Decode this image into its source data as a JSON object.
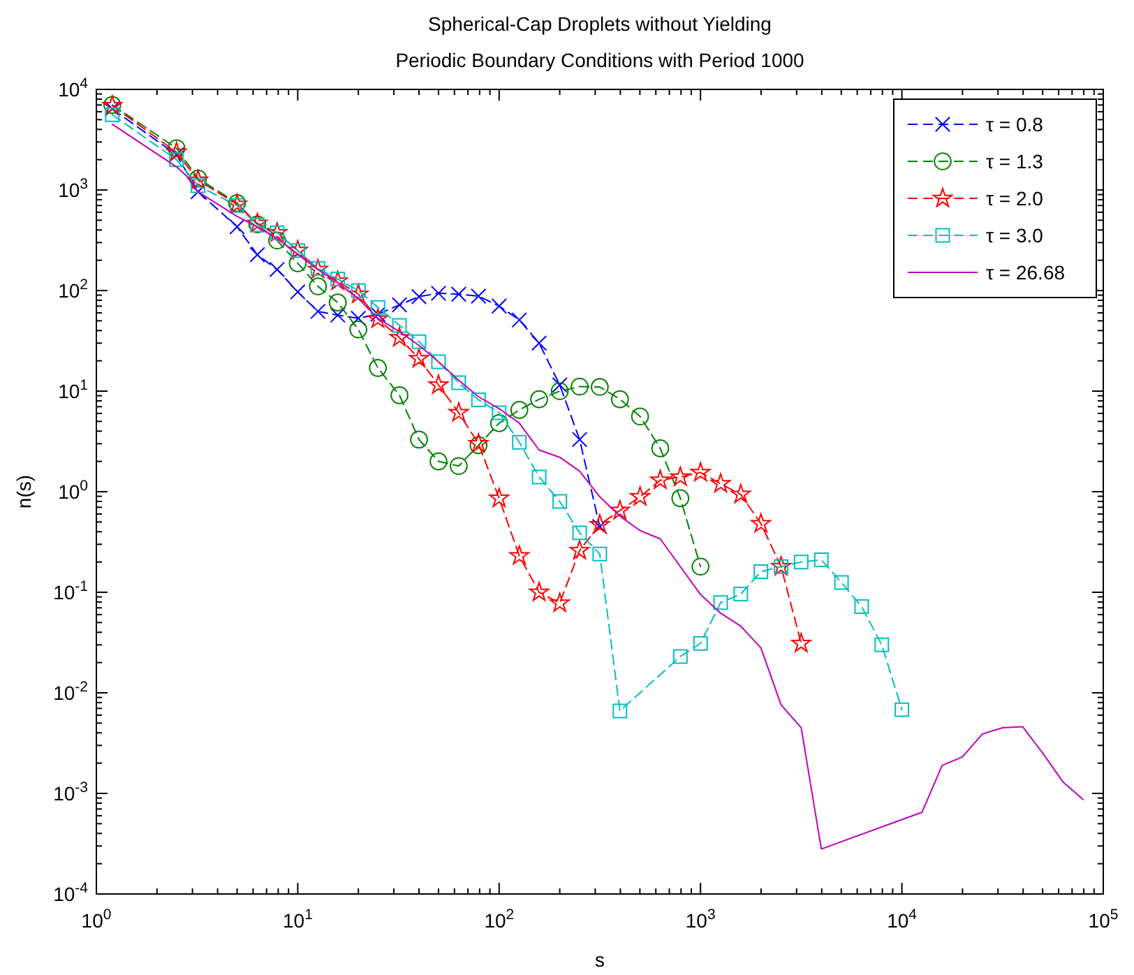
{
  "chart_data": {
    "type": "line",
    "title": "Spherical-Cap Droplets without Yielding",
    "subtitle": "Periodic Boundary Conditions with Period 1000",
    "xlabel": "s",
    "ylabel": "n(s)",
    "log": "xy",
    "grid": false,
    "legend": "top right",
    "xlim": [
      1,
      100000
    ],
    "ylim": [
      0.0001,
      10000
    ],
    "xticks": [
      {
        "value": 1,
        "label": "10$^{0}$"
      },
      {
        "value": 2,
        "label": null
      },
      {
        "value": 3,
        "label": null
      },
      {
        "value": 4,
        "label": null
      },
      {
        "value": 5,
        "label": null
      },
      {
        "value": 6,
        "label": null
      },
      {
        "value": 7,
        "label": null
      },
      {
        "value": 8,
        "label": null
      },
      {
        "value": 9,
        "label": null
      },
      {
        "value": 10,
        "label": "10$^{1}$"
      },
      {
        "value": 20,
        "label": null
      },
      {
        "value": 30,
        "label": null
      },
      {
        "value": 40,
        "label": null
      },
      {
        "value": 50,
        "label": null
      },
      {
        "value": 60,
        "label": null
      },
      {
        "value": 70,
        "label": null
      },
      {
        "value": 80,
        "label": null
      },
      {
        "value": 90,
        "label": null
      },
      {
        "value": 100,
        "label": "10$^{2}$"
      },
      {
        "value": 200,
        "label": null
      },
      {
        "value": 300,
        "label": null
      },
      {
        "value": 400,
        "label": null
      },
      {
        "value": 500,
        "label": null
      },
      {
        "value": 600,
        "label": null
      },
      {
        "value": 700,
        "label": null
      },
      {
        "value": 800,
        "label": null
      },
      {
        "value": 900,
        "label": null
      },
      {
        "value": 1000,
        "label": "10$^{3}$"
      },
      {
        "value": 2000,
        "label": null
      },
      {
        "value": 3000,
        "label": null
      },
      {
        "value": 4000,
        "label": null
      },
      {
        "value": 5000,
        "label": null
      },
      {
        "value": 6000,
        "label": null
      },
      {
        "value": 7000,
        "label": null
      },
      {
        "value": 8000,
        "label": null
      },
      {
        "value": 9000,
        "label": null
      },
      {
        "value": 10000,
        "label": "10$^{4}$"
      },
      {
        "value": 20000,
        "label": null
      },
      {
        "value": 30000,
        "label": null
      },
      {
        "value": 40000,
        "label": null
      },
      {
        "value": 50000,
        "label": null
      },
      {
        "value": 60000,
        "label": null
      },
      {
        "value": 70000,
        "label": null
      },
      {
        "value": 80000,
        "label": null
      },
      {
        "value": 90000,
        "label": null
      },
      {
        "value": 100000,
        "label": "10$^{5}$"
      }
    ],
    "yticks": [
      {
        "value": 0.0001,
        "label": "10$^{-4}$"
      },
      {
        "value": 0.0002,
        "label": null
      },
      {
        "value": 0.0003,
        "label": null
      },
      {
        "value": 0.0004,
        "label": null
      },
      {
        "value": 0.0005,
        "label": null
      },
      {
        "value": 0.0006,
        "label": null
      },
      {
        "value": 0.0007,
        "label": null
      },
      {
        "value": 0.0008,
        "label": null
      },
      {
        "value": 0.0009,
        "label": null
      },
      {
        "value": 0.001,
        "label": "10$^{-3}$"
      },
      {
        "value": 0.002,
        "label": null
      },
      {
        "value": 0.003,
        "label": null
      },
      {
        "value": 0.004,
        "label": null
      },
      {
        "value": 0.005,
        "label": null
      },
      {
        "value": 0.006,
        "label": null
      },
      {
        "value": 0.007,
        "label": null
      },
      {
        "value": 0.008,
        "label": null
      },
      {
        "value": 0.009,
        "label": null
      },
      {
        "value": 0.01,
        "label": "10$^{-2}$"
      },
      {
        "value": 0.02,
        "label": null
      },
      {
        "value": 0.03,
        "label": null
      },
      {
        "value": 0.04,
        "label": null
      },
      {
        "value": 0.05,
        "label": null
      },
      {
        "value": 0.06,
        "label": null
      },
      {
        "value": 0.07,
        "label": null
      },
      {
        "value": 0.08,
        "label": null
      },
      {
        "value": 0.09,
        "label": null
      },
      {
        "value": 0.1,
        "label": "10$^{-1}$"
      },
      {
        "value": 0.2,
        "label": null
      },
      {
        "value": 0.3,
        "label": null
      },
      {
        "value": 0.4,
        "label": null
      },
      {
        "value": 0.5,
        "label": null
      },
      {
        "value": 0.6,
        "label": null
      },
      {
        "value": 0.7,
        "label": null
      },
      {
        "value": 0.8,
        "label": null
      },
      {
        "value": 0.9,
        "label": null
      },
      {
        "value": 1,
        "label": "10$^{0}$"
      },
      {
        "value": 2,
        "label": null
      },
      {
        "value": 3,
        "label": null
      },
      {
        "value": 4,
        "label": null
      },
      {
        "value": 5,
        "label": null
      },
      {
        "value": 6,
        "label": null
      },
      {
        "value": 7,
        "label": null
      },
      {
        "value": 8,
        "label": null
      },
      {
        "value": 9,
        "label": null
      },
      {
        "value": 10,
        "label": "10$^{1}$"
      },
      {
        "value": 20,
        "label": null
      },
      {
        "value": 30,
        "label": null
      },
      {
        "value": 40,
        "label": null
      },
      {
        "value": 50,
        "label": null
      },
      {
        "value": 60,
        "label": null
      },
      {
        "value": 70,
        "label": null
      },
      {
        "value": 80,
        "label": null
      },
      {
        "value": 90,
        "label": null
      },
      {
        "value": 100,
        "label": "10$^{2}$"
      },
      {
        "value": 200,
        "label": null
      },
      {
        "value": 300,
        "label": null
      },
      {
        "value": 400,
        "label": null
      },
      {
        "value": 500,
        "label": null
      },
      {
        "value": 600,
        "label": null
      },
      {
        "value": 700,
        "label": null
      },
      {
        "value": 800,
        "label": null
      },
      {
        "value": 900,
        "label": null
      },
      {
        "value": 1000,
        "label": "10$^{3}$"
      },
      {
        "value": 2000,
        "label": null
      },
      {
        "value": 3000,
        "label": null
      },
      {
        "value": 4000,
        "label": null
      },
      {
        "value": 5000,
        "label": null
      },
      {
        "value": 6000,
        "label": null
      },
      {
        "value": 7000,
        "label": null
      },
      {
        "value": 8000,
        "label": null
      },
      {
        "value": 9000,
        "label": null
      },
      {
        "value": 10000,
        "label": "10$^{4}$"
      }
    ],
    "series": [
      {
        "name": "τ = 0.8",
        "color": "#0000ff",
        "marker": "cross",
        "line_style": "dashed",
        "x": [
          1.2,
          2.5,
          3.2,
          5,
          6.3,
          7.9,
          10,
          12.6,
          15.8,
          20,
          25,
          32,
          40,
          50,
          63,
          79,
          100,
          126,
          158,
          200,
          251,
          316
        ],
        "values": [
          6400,
          2240,
          960,
          430,
          227,
          162,
          97,
          62,
          57,
          53,
          58,
          72,
          87,
          94,
          92,
          88,
          70,
          51,
          30,
          11.5,
          3.3,
          0.45
        ]
      },
      {
        "name": "τ = 1.3",
        "color": "#008000",
        "marker": "circle",
        "line_style": "dashed",
        "x": [
          1.2,
          2.5,
          3.2,
          5,
          6.3,
          7.9,
          10,
          12.6,
          15.8,
          20,
          25,
          32,
          40,
          50,
          63,
          79,
          100,
          126,
          158,
          200,
          251,
          316,
          398,
          501,
          631,
          794,
          1000
        ],
        "values": [
          7000,
          2600,
          1300,
          740,
          455,
          315,
          187,
          110,
          76,
          41,
          17,
          9.1,
          3.3,
          2.0,
          1.8,
          2.9,
          4.8,
          6.5,
          8.3,
          10,
          11.1,
          11,
          8.3,
          5.6,
          2.7,
          0.86,
          0.18
        ]
      },
      {
        "name": "τ = 2.0",
        "color": "#ff0000",
        "marker": "star",
        "line_style": "dashed",
        "x": [
          1.2,
          2.5,
          3.2,
          5,
          6.3,
          7.9,
          10,
          12.6,
          15.8,
          20,
          25,
          32,
          40,
          50,
          63,
          79,
          100,
          126,
          158,
          200,
          251,
          316,
          398,
          501,
          631,
          794,
          1000,
          1259,
          1585,
          1995,
          2512,
          3162
        ],
        "values": [
          6900,
          2370,
          1250,
          720,
          465,
          375,
          250,
          162,
          124,
          92,
          52,
          34,
          21,
          11.5,
          6.1,
          3.0,
          0.86,
          0.23,
          0.1,
          0.078,
          0.26,
          0.47,
          0.65,
          0.89,
          1.3,
          1.4,
          1.55,
          1.2,
          0.94,
          0.48,
          0.18,
          0.031
        ]
      },
      {
        "name": "τ = 3.0",
        "color": "#00bfbf",
        "marker": "square",
        "line_style": "dashed",
        "x": [
          1.2,
          2.5,
          3.2,
          5,
          6.3,
          7.9,
          10,
          12.6,
          15.8,
          20,
          25,
          32,
          40,
          50,
          63,
          79,
          100,
          126,
          158,
          200,
          251,
          316,
          398,
          794,
          1000,
          1259,
          1585,
          1995,
          2512,
          3162,
          3981,
          5012,
          6310,
          7943,
          10000
        ],
        "values": [
          5600,
          2000,
          1100,
          700,
          450,
          375,
          250,
          166,
          130,
          100,
          68,
          45,
          31,
          19.6,
          12.1,
          8.2,
          6.1,
          3.1,
          1.4,
          0.8,
          0.39,
          0.24,
          0.0066,
          0.023,
          0.031,
          0.079,
          0.096,
          0.16,
          0.18,
          0.2,
          0.21,
          0.125,
          0.072,
          0.03,
          0.0068
        ]
      },
      {
        "name": "τ = 26.68",
        "color": "#bf00bf",
        "marker": "none",
        "line_style": "solid",
        "x": [
          1.2,
          2.5,
          2.8,
          3.2,
          5,
          6.3,
          7.9,
          10,
          12.6,
          15.8,
          20,
          25,
          32,
          40,
          50,
          63,
          79,
          100,
          126,
          158,
          200,
          251,
          316,
          398,
          501,
          631,
          794,
          1000,
          1259,
          1585,
          1995,
          2512,
          3162,
          3981,
          12590,
          15850,
          19950,
          25120,
          31620,
          39810,
          50120,
          63100,
          79430
        ],
        "values": [
          4500,
          1700,
          1380,
          960,
          545,
          430,
          330,
          230,
          162,
          120,
          83,
          53,
          39,
          28.5,
          19.6,
          12.8,
          8.8,
          6.7,
          4.8,
          2.6,
          2.2,
          1.6,
          0.89,
          0.57,
          0.41,
          0.34,
          0.18,
          0.095,
          0.062,
          0.046,
          0.028,
          0.0076,
          0.0045,
          0.00028,
          0.00065,
          0.0019,
          0.0023,
          0.0039,
          0.0045,
          0.0046,
          0.0025,
          0.0013,
          0.00087
        ]
      }
    ]
  }
}
